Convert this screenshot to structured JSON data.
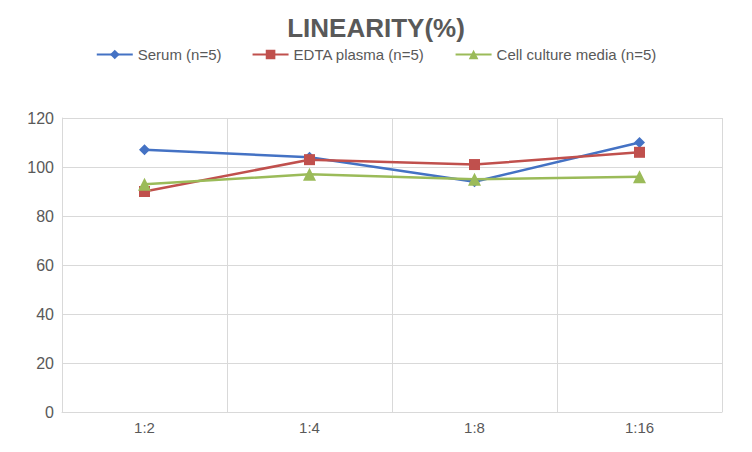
{
  "chart_data": {
    "type": "line",
    "title": "LINEARITY(%)",
    "categories": [
      "1:2",
      "1:4",
      "1:8",
      "1:16"
    ],
    "series": [
      {
        "name": "Serum (n=5)",
        "color": "#4472c4",
        "marker": "diamond",
        "values": [
          107,
          104,
          94,
          110
        ]
      },
      {
        "name": "EDTA plasma (n=5)",
        "color": "#c0504d",
        "marker": "square",
        "values": [
          90,
          103,
          101,
          106
        ]
      },
      {
        "name": "Cell culture media (n=5)",
        "color": "#9bbb59",
        "marker": "triangle",
        "values": [
          93,
          97,
          95,
          96
        ]
      }
    ],
    "ylim": [
      0,
      120
    ],
    "yticks": [
      0,
      20,
      40,
      60,
      80,
      100,
      120
    ],
    "grid": true,
    "legend": "top"
  }
}
